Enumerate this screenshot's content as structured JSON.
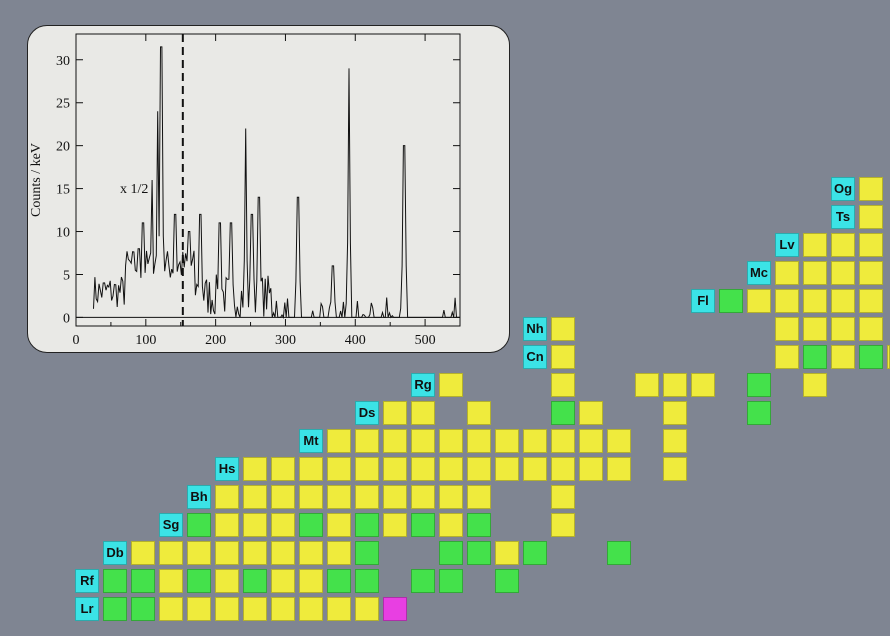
{
  "chart_data": {
    "type": "line",
    "xlabel": "Eγ (keV)",
    "ylabel": "Counts / keV",
    "xlim": [
      0,
      550
    ],
    "ylim": [
      -1,
      33
    ],
    "xticks": [
      0,
      100,
      200,
      300,
      400,
      500
    ],
    "yticks": [
      0,
      5,
      10,
      15,
      20,
      25,
      30
    ],
    "annotation": "x 1/2",
    "divider_energy": 153,
    "peaks": [
      {
        "e": 122,
        "h": 31.5
      },
      {
        "e": 117,
        "h": 24
      },
      {
        "e": 109,
        "h": 16
      },
      {
        "e": 96,
        "h": 11
      },
      {
        "e": 90,
        "h": 8
      },
      {
        "e": 142,
        "h": 12
      },
      {
        "e": 162,
        "h": 10
      },
      {
        "e": 178,
        "h": 12
      },
      {
        "e": 206,
        "h": 11
      },
      {
        "e": 222,
        "h": 11
      },
      {
        "e": 243,
        "h": 22
      },
      {
        "e": 252,
        "h": 12
      },
      {
        "e": 262,
        "h": 14
      },
      {
        "e": 318,
        "h": 14
      },
      {
        "e": 368,
        "h": 6
      },
      {
        "e": 391,
        "h": 29
      },
      {
        "e": 470,
        "h": 20
      }
    ]
  },
  "nuclide_chart": {
    "labels": [
      "Og",
      "Ts",
      "Lv",
      "Mc",
      "Fl",
      "Nh",
      "Cn",
      "Rg",
      "Ds",
      "Mt",
      "Hs",
      "Bh",
      "Sg",
      "Db",
      "Rf",
      "Lr"
    ],
    "colors": {
      "yellow": "#efeb3c",
      "green": "#44e14b",
      "magenta": "#e83fe2",
      "label": "#3be3e6"
    }
  }
}
